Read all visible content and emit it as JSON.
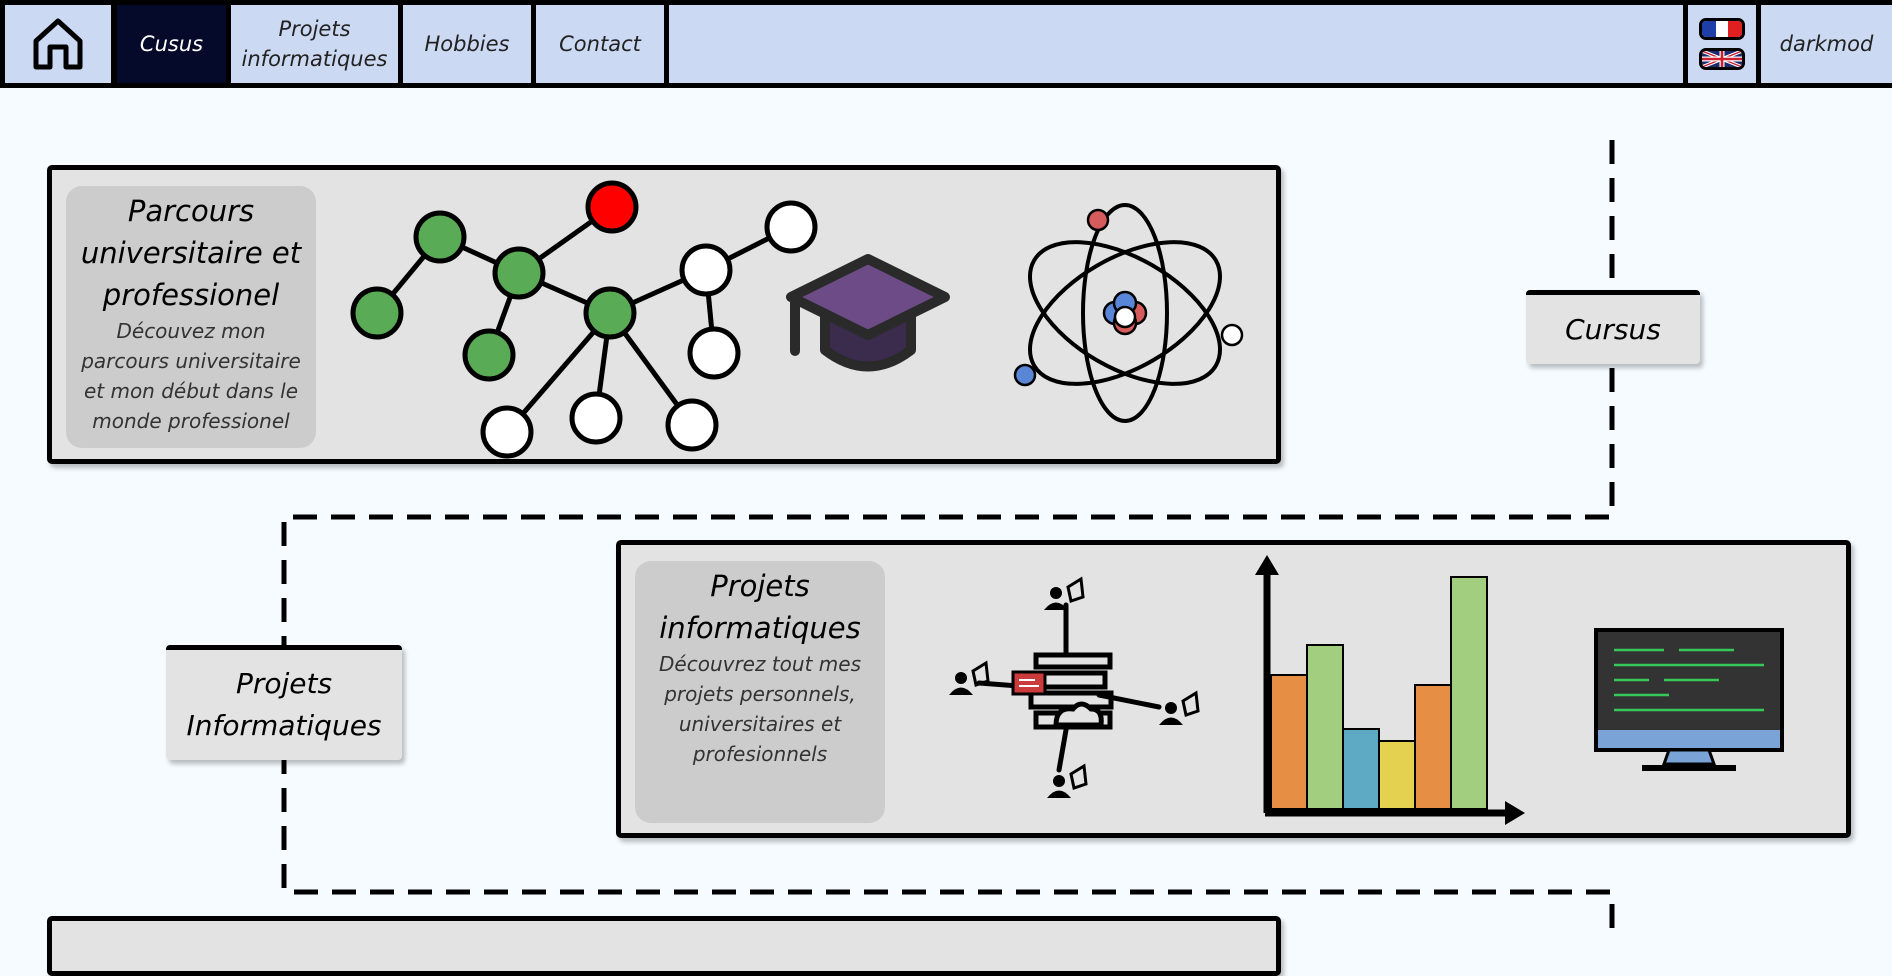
{
  "nav": {
    "home_icon": "home-icon",
    "items": [
      {
        "label": "Cusus",
        "active": true
      },
      {
        "label": "Projets informatiques",
        "active": false
      },
      {
        "label": "Hobbies",
        "active": false
      },
      {
        "label": "Contact",
        "active": false
      }
    ],
    "flags": [
      "france-flag-icon",
      "uk-flag-icon"
    ],
    "darkmode_label": "darkmod"
  },
  "timeline": {
    "labels": [
      "Cursus",
      "Projets Informatiques"
    ]
  },
  "cards": [
    {
      "title": "Parcours universitaire et professionel",
      "description": "Découvez mon parcours universitaire et mon début dans le monde professionel",
      "icons": [
        "network-graph-icon",
        "graduation-cap-icon",
        "atom-icon"
      ]
    },
    {
      "title": "Projets informatiques",
      "description": "Découvrez tout mes projets personnels, universitaires et profesionnels",
      "icons": [
        "cloud-network-icon",
        "bar-chart-icon",
        "monitor-code-icon"
      ]
    }
  ],
  "colors": {
    "nav_bg": "#ccd9f3",
    "nav_active": "#050a2a",
    "page_bg": "#f5fbff",
    "card_bg": "#e3e3e3",
    "card_text_bg": "#cccccc",
    "node_green": "#5aab55",
    "node_red": "#ff0000",
    "cap_purple": "#6c4b86"
  }
}
